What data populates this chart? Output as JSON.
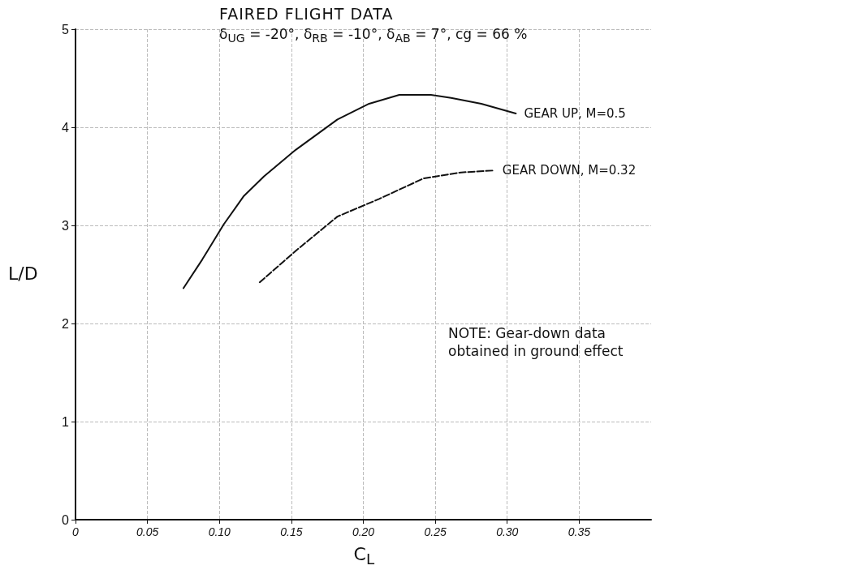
{
  "chart_data": {
    "type": "line",
    "title": "FAIRED FLIGHT DATA",
    "subtitle": "δ$_{UG}$ = -20°, δ$_{RB}$ = -10°, δ$_{AB}$ = 7°, cg = 66 %",
    "xlabel": "C$_{L}$",
    "ylabel": "L/D",
    "xlim": [
      0,
      0.4
    ],
    "xticks": [
      0,
      {
        "value": 0.05,
        "label": "0.05"
      },
      {
        "value": 0.1,
        "label": "0.10"
      },
      {
        "value": 0.15,
        "label": "0.15"
      },
      {
        "value": 0.2,
        "label": "0.20"
      },
      {
        "value": 0.25,
        "label": "0.25"
      },
      {
        "value": 0.3,
        "label": "0.30"
      },
      {
        "value": 0.35,
        "label": "0.35"
      }
    ],
    "ylim": [
      0,
      5
    ],
    "yticks": [
      0,
      1,
      2,
      3,
      4,
      5
    ],
    "series": [
      {
        "name": "GEAR UP, M=0.5",
        "color": "#111111",
        "line_style": "solid",
        "x": [
          0.075,
          0.088,
          0.103,
          0.117,
          0.131,
          0.153,
          0.182,
          0.204,
          0.225,
          0.247,
          0.261,
          0.282,
          0.306
        ],
        "values": [
          2.36,
          2.65,
          3.01,
          3.3,
          3.5,
          3.77,
          4.08,
          4.24,
          4.33,
          4.33,
          4.3,
          4.24,
          4.14
        ]
      },
      {
        "name": "GEAR DOWN, M=0.32",
        "color": "#111111",
        "line_style": "dashed",
        "x": [
          0.128,
          0.153,
          0.182,
          0.211,
          0.242,
          0.268,
          0.291
        ],
        "values": [
          2.42,
          2.74,
          3.09,
          3.27,
          3.48,
          3.54,
          3.56
        ]
      }
    ],
    "annotations": [
      "NOTE: Gear-down data obtained in ground effect"
    ],
    "grid": true,
    "marker": "none",
    "legend": false
  }
}
